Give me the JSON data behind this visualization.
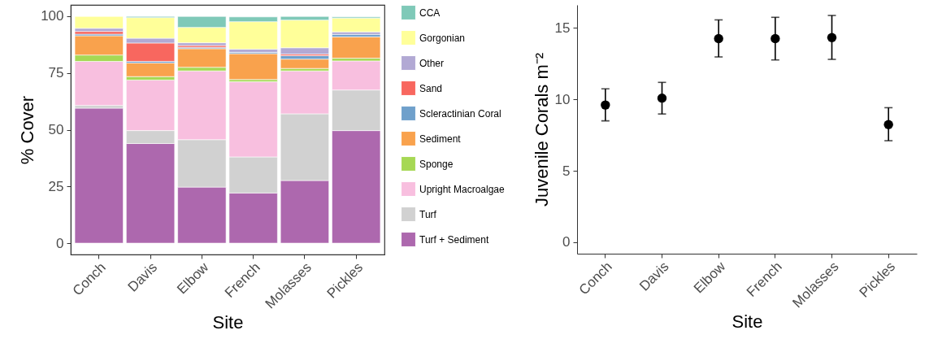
{
  "chart_data": [
    {
      "type": "bar",
      "stacked": true,
      "xlabel": "Site",
      "ylabel": "% Cover",
      "categories": [
        "Conch",
        "Davis",
        "Elbow",
        "French",
        "Molasses",
        "Pickles"
      ],
      "ylim": [
        -5,
        105
      ],
      "yticks": [
        0,
        25,
        50,
        75,
        100
      ],
      "grid": false,
      "legend": "right",
      "series": [
        {
          "name": "Turf + Sediment",
          "color": "#ad68ae",
          "values": [
            59.5,
            43.9,
            24.7,
            22.1,
            27.6,
            49.6
          ]
        },
        {
          "name": "Turf",
          "color": "#d1d1d1",
          "values": [
            1.2,
            5.7,
            20.9,
            15.9,
            29.4,
            17.9
          ]
        },
        {
          "name": "Upright Macroalgae",
          "color": "#f8bfdf",
          "values": [
            19.4,
            22.3,
            30.3,
            33.1,
            18.9,
            12.8
          ]
        },
        {
          "name": "Sponge",
          "color": "#a6d854",
          "values": [
            2.8,
            1.5,
            1.6,
            1.0,
            1.1,
            1.2
          ]
        },
        {
          "name": "Sediment",
          "color": "#f9a24d",
          "values": [
            8.5,
            6.0,
            8.2,
            11.4,
            4.1,
            9.4
          ]
        },
        {
          "name": "Scleractinian Coral",
          "color": "#6fa0cb",
          "values": [
            0.7,
            0.7,
            0.6,
            0.6,
            1.5,
            1.1
          ]
        },
        {
          "name": "Sand",
          "color": "#f8675f",
          "values": [
            1.2,
            8.1,
            0.8,
            null,
            0.7,
            null
          ]
        },
        {
          "name": "Other",
          "color": "#b2a9d4",
          "values": [
            1.4,
            2.1,
            1.2,
            1.4,
            2.8,
            1.1
          ]
        },
        {
          "name": "Gorgonian",
          "color": "#ffff99",
          "values": [
            5.2,
            9.1,
            6.8,
            12.1,
            12.2,
            6.1
          ]
        },
        {
          "name": "CCA",
          "color": "#7fc9b8",
          "values": [
            null,
            0.5,
            4.8,
            2.1,
            1.6,
            0.5
          ]
        }
      ]
    },
    {
      "type": "scatter",
      "xlabel": "Site",
      "ylabel": "Juvenile Corals m⁻²",
      "categories": [
        "Conch",
        "Davis",
        "Elbow",
        "French",
        "Molasses",
        "Pickles"
      ],
      "ylim": [
        -0.8,
        16.6
      ],
      "yticks": [
        0,
        5,
        10,
        15
      ],
      "grid": false,
      "marker": "circle",
      "series": [
        {
          "color": "#000000",
          "values": [
            9.6,
            10.08,
            14.24,
            14.24,
            14.31,
            8.23
          ],
          "errors": [
            [
              8.49,
              10.73
            ],
            [
              8.97,
              11.18
            ],
            [
              12.96,
              15.55
            ],
            [
              12.75,
              15.73
            ],
            [
              12.79,
              15.86
            ],
            [
              7.1,
              9.41
            ]
          ]
        }
      ]
    }
  ]
}
